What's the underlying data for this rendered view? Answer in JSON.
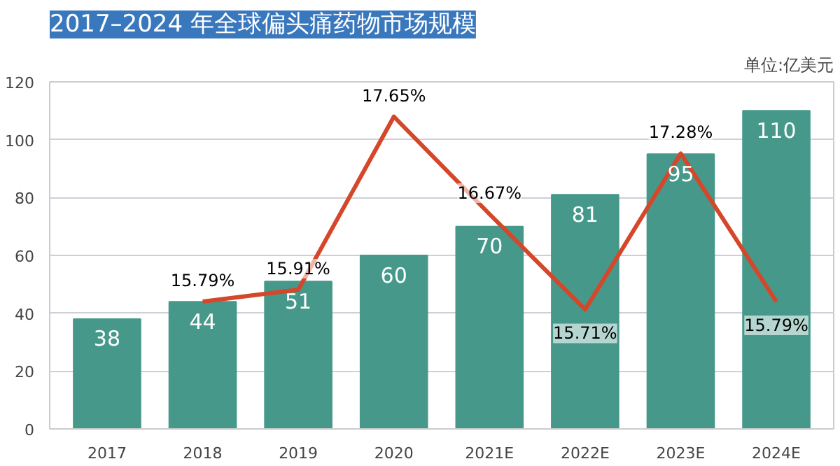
{
  "chart_data": {
    "type": "bar",
    "title": "2017–2024 年全球偏头痛药物市场规模",
    "categories": [
      "2017",
      "2018",
      "2019",
      "2020",
      "2021E",
      "2022E",
      "2023E",
      "2024E"
    ],
    "series": [
      {
        "color": "#46998a",
        "values": [
          38,
          44,
          51,
          60,
          70,
          81,
          95,
          110
        ]
      },
      {
        "type": "line",
        "axis": "y2",
        "color": "#d4472a",
        "values": [
          null,
          15.79,
          15.91,
          17.65,
          16.67,
          15.71,
          17.28,
          15.79
        ],
        "value_labels": [
          null,
          "15.79%",
          "15.91%",
          "17.65%",
          "16.67%",
          "15.71%",
          "17.28%",
          "15.79%"
        ]
      }
    ],
    "ylim": [
      0,
      120
    ],
    "yticks": [
      0,
      20,
      40,
      60,
      80,
      100,
      120
    ],
    "y2lim": [
      14.51,
      18.0
    ],
    "annotations": [
      "单位:亿美元"
    ],
    "data_labels": true,
    "grid": "y",
    "legend": false,
    "marker": "none",
    "line_style": "solid"
  }
}
